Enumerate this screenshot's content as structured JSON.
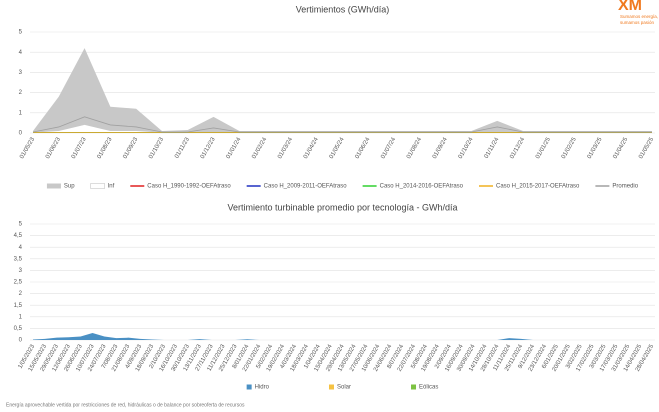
{
  "logo": {
    "name": "XM",
    "tagline": [
      "Sumamos energía,",
      "sumamos pasión"
    ]
  },
  "footnote": "Energía aprovechable vertida por restricciones de red, hidráulicas o de balance por sobreoferta de recursos",
  "chart_data": [
    {
      "type": "line",
      "title": "Vertimientos (GWh/día)",
      "categories": [
        "01/05/23",
        "01/06/23",
        "01/07/23",
        "01/08/23",
        "01/09/23",
        "01/10/23",
        "01/11/23",
        "01/12/23",
        "01/01/24",
        "01/02/24",
        "01/03/24",
        "01/04/24",
        "01/05/24",
        "01/06/24",
        "01/07/24",
        "01/08/24",
        "01/09/24",
        "01/10/24",
        "01/11/24",
        "01/12/24",
        "01/01/25",
        "01/02/25",
        "01/03/25",
        "01/04/25",
        "01/05/25"
      ],
      "ylim": [
        0,
        5
      ],
      "yticks": [
        0,
        1,
        2,
        3,
        4,
        5
      ],
      "grid": true,
      "legend": "bottom",
      "series": [
        {
          "name": "Sup",
          "color": "#c8c8c8",
          "fill": true,
          "values": [
            0.1,
            1.8,
            4.2,
            1.3,
            1.2,
            0.1,
            0.15,
            0.8,
            0.1,
            0.1,
            0.1,
            0.1,
            0.1,
            0.1,
            0.1,
            0.1,
            0.1,
            0.1,
            0.6,
            0.1,
            0.1,
            0.1,
            0.1,
            0.1,
            0.1
          ]
        },
        {
          "name": "Inf",
          "color": "#ffffff",
          "fill": true,
          "values": [
            0.02,
            0.1,
            0.4,
            0.1,
            0.1,
            0.02,
            0,
            0.05,
            0,
            0,
            0,
            0,
            0,
            0,
            0,
            0,
            0,
            0,
            0.05,
            0,
            0,
            0,
            0,
            0,
            0
          ]
        },
        {
          "name": "Caso H_1990-1992-OEFAtraso",
          "color": "#e02020",
          "values": [
            0.03,
            0.03,
            0.03,
            0.03,
            0.03,
            0.03,
            0.03,
            0.03,
            0.03,
            0.03,
            0.03,
            0.03,
            0.03,
            0.03,
            0.03,
            0.03,
            0.03,
            0.03,
            0.03,
            0.03,
            0.03,
            0.03,
            0.03,
            0.03,
            0.03
          ]
        },
        {
          "name": "Caso H_2009-2011-OEFAtraso",
          "color": "#2030c0",
          "values": [
            0.03,
            0.03,
            0.03,
            0.03,
            0.03,
            0.03,
            0.03,
            0.03,
            0.03,
            0.03,
            0.03,
            0.03,
            0.03,
            0.03,
            0.03,
            0.03,
            0.03,
            0.03,
            0.03,
            0.03,
            0.03,
            0.03,
            0.03,
            0.03,
            0.03
          ]
        },
        {
          "name": "Caso H_2014-2016-OEFAtraso",
          "color": "#30d030",
          "values": [
            0.03,
            0.03,
            0.03,
            0.03,
            0.03,
            0.03,
            0.03,
            0.03,
            0.03,
            0.03,
            0.03,
            0.03,
            0.03,
            0.03,
            0.03,
            0.03,
            0.03,
            0.03,
            0.03,
            0.03,
            0.03,
            0.03,
            0.03,
            0.03,
            0.03
          ]
        },
        {
          "name": "Caso H_2015-2017-OEFAtraso",
          "color": "#f0b020",
          "values": [
            0.03,
            0.03,
            0.03,
            0.03,
            0.03,
            0.03,
            0.03,
            0.03,
            0.03,
            0.03,
            0.03,
            0.03,
            0.03,
            0.03,
            0.03,
            0.03,
            0.03,
            0.03,
            0.03,
            0.03,
            0.03,
            0.03,
            0.03,
            0.03,
            0.03
          ]
        },
        {
          "name": "Promedio",
          "color": "#a0a0a0",
          "values": [
            0.05,
            0.3,
            0.8,
            0.4,
            0.3,
            0.05,
            0.05,
            0.25,
            0.05,
            0.05,
            0.05,
            0.05,
            0.05,
            0.05,
            0.05,
            0.05,
            0.05,
            0.05,
            0.3,
            0.05,
            0.05,
            0.05,
            0.05,
            0.05,
            0.05
          ]
        }
      ]
    },
    {
      "type": "area",
      "stacked": true,
      "title": "Vertimiento turbinable promedio por tecnología - GWh/día",
      "categories": [
        "1/05/2023",
        "15/05/2023",
        "29/05/2023",
        "12/06/2023",
        "26/06/2023",
        "10/07/2023",
        "24/07/2023",
        "7/08/2023",
        "21/08/2023",
        "4/09/2023",
        "18/09/2023",
        "2/10/2023",
        "16/10/2023",
        "30/10/2023",
        "13/11/2023",
        "27/11/2023",
        "11/12/2023",
        "25/12/2023",
        "8/01/2024",
        "22/01/2024",
        "5/02/2024",
        "19/02/2024",
        "4/03/2024",
        "18/03/2024",
        "1/04/2024",
        "15/04/2024",
        "29/04/2024",
        "13/05/2024",
        "27/05/2024",
        "10/06/2024",
        "24/06/2024",
        "8/07/2024",
        "22/07/2024",
        "5/08/2024",
        "19/08/2024",
        "2/09/2024",
        "16/09/2024",
        "30/09/2024",
        "14/10/2024",
        "28/10/2024",
        "11/11/2024",
        "25/11/2024",
        "9/12/2024",
        "23/12/2024",
        "6/01/2025",
        "20/01/2025",
        "3/02/2025",
        "17/02/2025",
        "3/03/2025",
        "17/03/2025",
        "31/03/2025",
        "14/04/2025",
        "28/04/2025"
      ],
      "ylim": [
        0,
        5
      ],
      "yticks": [
        0,
        {
          "value": 0.5,
          "label": "0,5"
        },
        1,
        {
          "value": 1.5,
          "label": "1,5"
        },
        2,
        {
          "value": 2.5,
          "label": "2,5"
        },
        3,
        {
          "value": 3.5,
          "label": "3,5"
        },
        4,
        {
          "value": 4.5,
          "label": "4,5"
        },
        5
      ],
      "grid": true,
      "legend": "bottom",
      "series": [
        {
          "name": "Hidro",
          "color": "#4a90c4",
          "values": [
            0.02,
            0.05,
            0.1,
            0.12,
            0.15,
            0.3,
            0.15,
            0.08,
            0.1,
            0.05,
            0.02,
            0,
            0,
            0,
            0.04,
            0,
            0,
            0,
            0.03,
            0,
            0,
            0,
            0,
            0,
            0,
            0,
            0,
            0,
            0,
            0,
            0,
            0,
            0,
            0,
            0,
            0,
            0,
            0,
            0,
            0,
            0.08,
            0.05,
            0,
            0,
            0,
            0,
            0,
            0,
            0,
            0,
            0,
            0,
            0
          ]
        },
        {
          "name": "Solar",
          "color": "#f5c242",
          "values": [
            0,
            0,
            0,
            0,
            0,
            0,
            0,
            0,
            0,
            0,
            0,
            0,
            0,
            0,
            0,
            0,
            0,
            0,
            0,
            0,
            0,
            0,
            0,
            0,
            0,
            0,
            0,
            0,
            0,
            0,
            0,
            0,
            0,
            0,
            0,
            0,
            0,
            0,
            0,
            0,
            0,
            0,
            0,
            0,
            0,
            0,
            0,
            0,
            0,
            0,
            0,
            0,
            0
          ]
        },
        {
          "name": "Eólicas",
          "color": "#7cc242",
          "values": [
            0,
            0,
            0,
            0,
            0,
            0,
            0,
            0,
            0,
            0,
            0,
            0,
            0,
            0,
            0,
            0,
            0,
            0,
            0,
            0,
            0,
            0,
            0,
            0,
            0,
            0,
            0,
            0,
            0,
            0,
            0,
            0,
            0,
            0,
            0,
            0,
            0,
            0,
            0,
            0,
            0,
            0,
            0,
            0,
            0,
            0,
            0,
            0,
            0,
            0,
            0,
            0,
            0
          ]
        }
      ]
    }
  ]
}
